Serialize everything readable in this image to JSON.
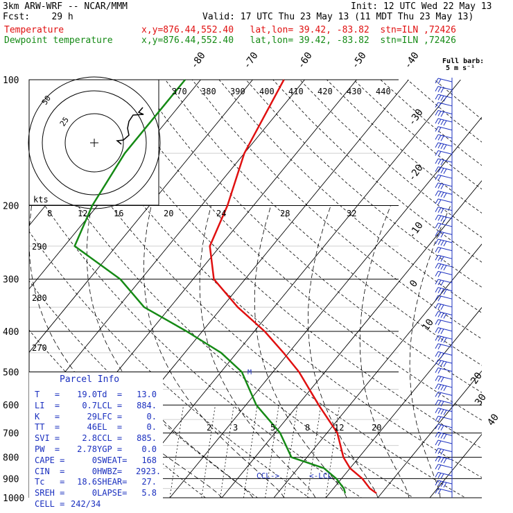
{
  "header": {
    "model": "3km ARW-WRF -- NCAR/MMM",
    "init": "Init: 12 UTC Wed 22 May 13",
    "fcst": "Fcst:    29 h",
    "valid": "Valid: 17 UTC Thu 23 May 13 (11 MDT Thu 23 May 13)",
    "temp_label": "Temperature",
    "temp_info": "x,y=876.44,552.40   lat,lon= 39.42, -83.82  stn=ILN ,72426",
    "dew_label": "Dewpoint temperature",
    "dew_info": "x,y=876.44,552.40   lat,lon= 39.42, -83.82  stn=ILN ,72426",
    "barb_label": "Full barb:",
    "barb_units": "5 m s⁻¹"
  },
  "colors": {
    "temperature": "#e01010",
    "dewpoint": "#158a15",
    "info": "#1a2fbf",
    "isobar": "#000000"
  },
  "chart_data": {
    "type": "line",
    "title": "Skew-T log-P sounding",
    "pressure_levels": [
      "100",
      "200",
      "300",
      "400",
      "500",
      "600",
      "700",
      "800",
      "900",
      "1000"
    ],
    "isotherm_labels": [
      "-80",
      "-70",
      "-60",
      "-50",
      "-40",
      "-30",
      "-20",
      "-10",
      "0",
      "10",
      "20",
      "30",
      "40"
    ],
    "theta_labels": [
      "370",
      "380",
      "390",
      "400",
      "410",
      "420",
      "430",
      "440"
    ],
    "left_theta_labels": [
      "290",
      "280",
      "270"
    ],
    "mixing_ratio_labels": [
      "2",
      "3",
      "5",
      "8",
      "12",
      "20"
    ],
    "hodograph_speed_labels": [
      "8",
      "12",
      "16",
      "20",
      "24",
      "28",
      "32"
    ],
    "hodograph_units": "kts",
    "hodograph_ring_labels": [
      "25",
      "50"
    ],
    "markers": [
      "CCL",
      "LCL",
      "M"
    ],
    "series": [
      {
        "name": "Temperature",
        "points": [
          [
            100,
            -64
          ],
          [
            150,
            -60
          ],
          [
            200,
            -55
          ],
          [
            250,
            -52
          ],
          [
            300,
            -46
          ],
          [
            350,
            -37
          ],
          [
            400,
            -28
          ],
          [
            450,
            -21
          ],
          [
            500,
            -15
          ],
          [
            600,
            -6
          ],
          [
            700,
            2
          ],
          [
            800,
            7
          ],
          [
            850,
            10
          ],
          [
            900,
            14
          ],
          [
            950,
            17
          ],
          [
            975,
            19
          ]
        ]
      },
      {
        "name": "Dewpoint",
        "points": [
          [
            100,
            -83
          ],
          [
            150,
            -83
          ],
          [
            200,
            -81
          ],
          [
            250,
            -78
          ],
          [
            300,
            -64
          ],
          [
            350,
            -55
          ],
          [
            400,
            -43
          ],
          [
            450,
            -33
          ],
          [
            500,
            -26
          ],
          [
            600,
            -18
          ],
          [
            700,
            -9
          ],
          [
            800,
            -3
          ],
          [
            850,
            5
          ],
          [
            900,
            9
          ],
          [
            950,
            12
          ],
          [
            975,
            13
          ]
        ]
      }
    ],
    "parcel_info": {
      "title": "Parcel Info",
      "rows": [
        [
          "T   =",
          "19.0",
          "Td  =",
          "13.0"
        ],
        [
          "LI  =",
          "0.7",
          "LCL =",
          "884."
        ],
        [
          "K   =",
          "29",
          "LFC =",
          "0."
        ],
        [
          "TT  =",
          "46",
          "EL  =",
          "0."
        ],
        [
          "SVI =",
          "2.8",
          "CCL =",
          "885."
        ],
        [
          "PW  =",
          "2.78",
          "YGP =",
          "0.0"
        ],
        [
          "CAPE =",
          "0",
          "SWEAT=",
          "168"
        ],
        [
          "CIN  =",
          "0",
          "HWBZ=",
          "2923."
        ],
        [
          "Tc   =",
          "18.6",
          "SHEAR=",
          "27."
        ],
        [
          "SREH =",
          "0",
          "LAPSE=",
          "5.8"
        ],
        [
          "CELL =",
          "242/34",
          "",
          ""
        ]
      ]
    }
  }
}
